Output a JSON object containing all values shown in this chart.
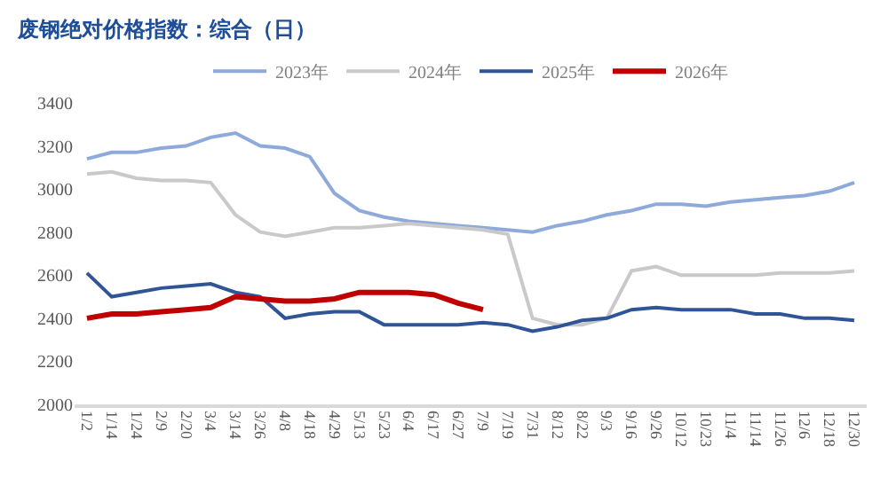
{
  "chart_data": {
    "type": "line",
    "title": "废钢绝对价格指数：综合（日）",
    "categories": [
      "1/2",
      "1/14",
      "1/24",
      "2/9",
      "2/20",
      "3/4",
      "3/14",
      "3/26",
      "4/8",
      "4/18",
      "4/29",
      "5/13",
      "5/23",
      "6/4",
      "6/17",
      "6/27",
      "7/9",
      "7/19",
      "7/31",
      "8/12",
      "8/22",
      "9/3",
      "9/16",
      "9/26",
      "10/12",
      "10/23",
      "11/4",
      "11/14",
      "11/26",
      "12/6",
      "12/18",
      "12/30"
    ],
    "series": [
      {
        "name": "2023年",
        "color": "#8eaadb",
        "values": [
          3140,
          3170,
          3170,
          3190,
          3200,
          3240,
          3260,
          3200,
          3190,
          3150,
          2980,
          2900,
          2870,
          2850,
          2840,
          2830,
          2820,
          2810,
          2800,
          2830,
          2850,
          2880,
          2900,
          2930,
          2930,
          2920,
          2940,
          2950,
          2960,
          2970,
          2990,
          3030
        ]
      },
      {
        "name": "2024年",
        "color": "#c9c9c9",
        "values": [
          3070,
          3080,
          3050,
          3040,
          3040,
          3030,
          2880,
          2800,
          2780,
          2800,
          2820,
          2820,
          2830,
          2840,
          2830,
          2820,
          2810,
          2790,
          2400,
          2370,
          2370,
          2400,
          2620,
          2640,
          2600,
          2600,
          2600,
          2600,
          2610,
          2610,
          2610,
          2620
        ]
      },
      {
        "name": "2025年",
        "color": "#2f5597",
        "values": [
          2610,
          2500,
          2520,
          2540,
          2550,
          2560,
          2520,
          2500,
          2400,
          2420,
          2430,
          2430,
          2370,
          2370,
          2370,
          2370,
          2380,
          2370,
          2340,
          2360,
          2390,
          2400,
          2440,
          2450,
          2440,
          2440,
          2440,
          2420,
          2420,
          2400,
          2400,
          2390
        ]
      },
      {
        "name": "2026年",
        "color": "#c00000",
        "values": [
          2400,
          2420,
          2420,
          2430,
          2440,
          2450,
          2500,
          2490,
          2480,
          2480,
          2490,
          2520,
          2520,
          2520,
          2510,
          2470,
          2440,
          null,
          null,
          null,
          null,
          null,
          null,
          null,
          null,
          null,
          null,
          null,
          null,
          null,
          null,
          null
        ]
      }
    ],
    "ylim": [
      2000,
      3400
    ],
    "yticks": [
      2000,
      2200,
      2400,
      2600,
      2800,
      3000,
      3200,
      3400
    ],
    "legend": "top",
    "marker": "none",
    "line_style": "solid"
  }
}
